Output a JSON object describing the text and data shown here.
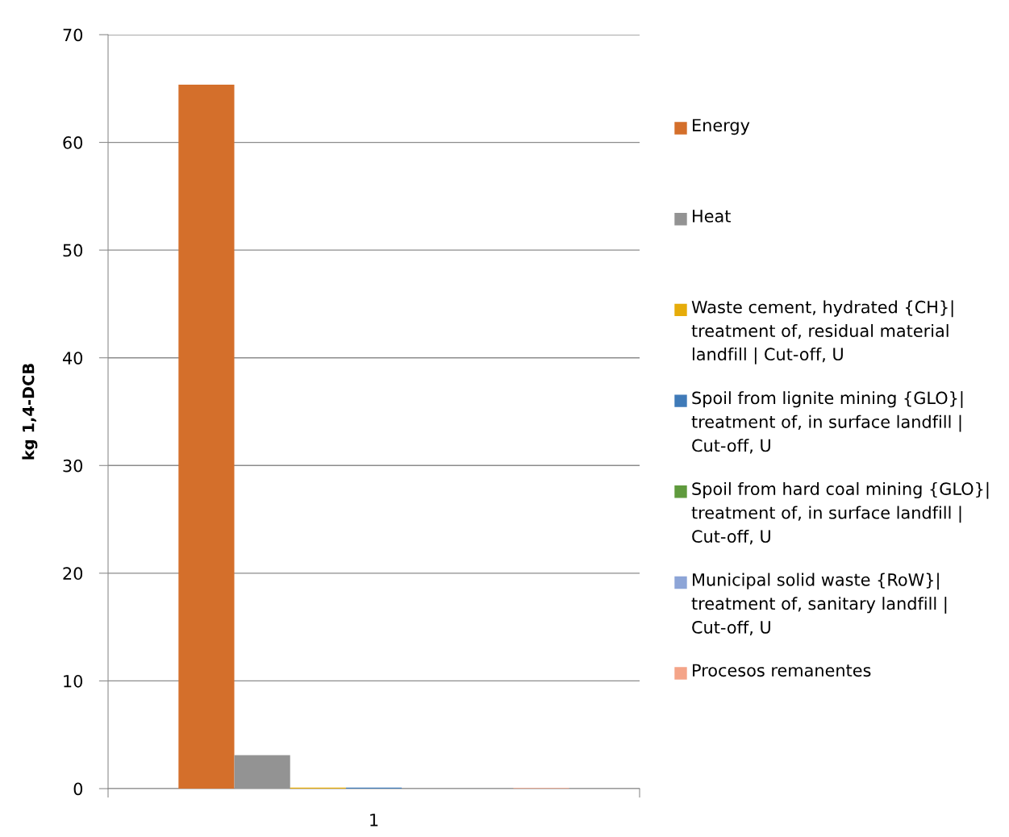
{
  "chart_data": {
    "type": "bar",
    "ylabel": "kg 1,4-DCB",
    "categories": [
      "1"
    ],
    "series": [
      {
        "name": "Energy",
        "color": "#d46f2b",
        "values": [
          65.35
        ]
      },
      {
        "name": "Heat",
        "color": "#939393",
        "values": [
          3.1
        ]
      },
      {
        "name": "Waste cement, hydrated {CH}| treatment of, residual material landfill | Cut-off, U",
        "color": "#e6ac0a",
        "values": [
          0.1
        ]
      },
      {
        "name": "Spoil from lignite mining {GLO}| treatment of, in surface landfill | Cut-off, U",
        "color": "#3f7ab8",
        "values": [
          0.1
        ]
      },
      {
        "name": "Spoil from hard coal mining {GLO}| treatment of, in surface landfill | Cut-off, U",
        "color": "#5f9a3d",
        "values": [
          0
        ]
      },
      {
        "name": "Municipal solid waste {RoW}| treatment of, sanitary landfill | Cut-off, U",
        "color": "#8da5d7",
        "values": [
          0
        ]
      },
      {
        "name": "Procesos remanentes",
        "color": "#f4a488",
        "values": [
          0.05
        ]
      }
    ],
    "ylim": [
      0,
      70
    ],
    "yticks": [
      0,
      10,
      20,
      30,
      40,
      50,
      60,
      70
    ],
    "grid": "y",
    "legend": "right"
  }
}
